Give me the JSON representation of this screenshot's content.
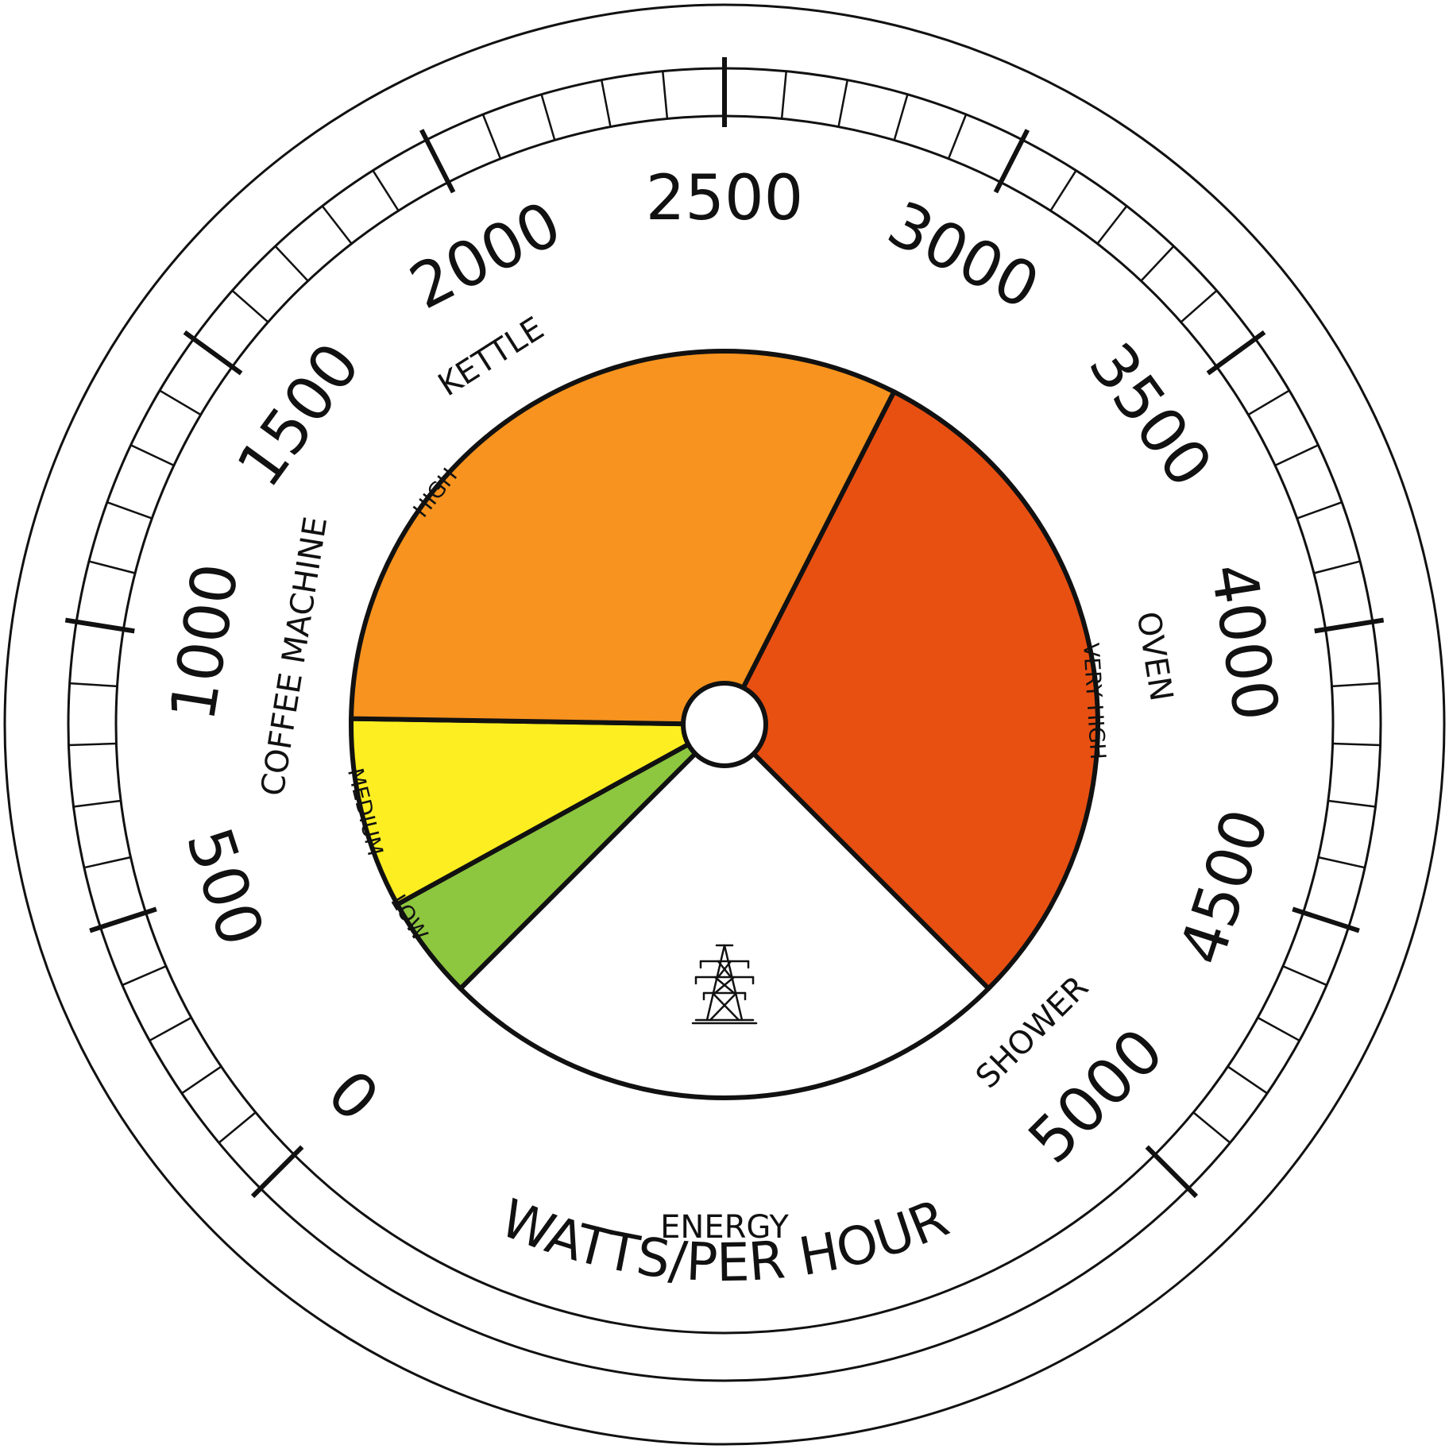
{
  "gauge": {
    "scale": {
      "min": 0,
      "max": 5000,
      "start_angle_deg": 225,
      "end_angle_deg": 495,
      "minor_step": 100,
      "major_step": 500,
      "labels": [
        "0",
        "500",
        "1000",
        "1500",
        "2000",
        "2500",
        "3000",
        "3500",
        "4000",
        "4500",
        "5000"
      ]
    },
    "appliances": [
      {
        "label": "COFFEE MACHINE",
        "value": 1000
      },
      {
        "label": "KETTLE",
        "value": 1900
      },
      {
        "label": "OVEN",
        "value": 4000
      },
      {
        "label": "SHOWER",
        "value": 5000
      }
    ],
    "zones": [
      {
        "label": "LOW",
        "from": 0,
        "to": 300,
        "color": "#8dc63f"
      },
      {
        "label": "MEDIUM",
        "from": 300,
        "to": 850,
        "color": "#fcee21"
      },
      {
        "label": "HIGH",
        "from": 850,
        "to": 3000,
        "color": "#f7931e"
      },
      {
        "label": "VERY HIGH",
        "from": 3000,
        "to": 5000,
        "color": "#e85012"
      }
    ],
    "zone_labels": [
      {
        "label": "LOW",
        "value": 250
      },
      {
        "label": "MEDIUM",
        "value": 580
      },
      {
        "label": "HIGH",
        "value": 1550
      },
      {
        "label": "VERY HIGH",
        "value": 4100
      }
    ],
    "center_icon": "power-pylon-icon",
    "caption_small": "ENERGY",
    "caption_large": "WATTS/PER HOUR"
  }
}
